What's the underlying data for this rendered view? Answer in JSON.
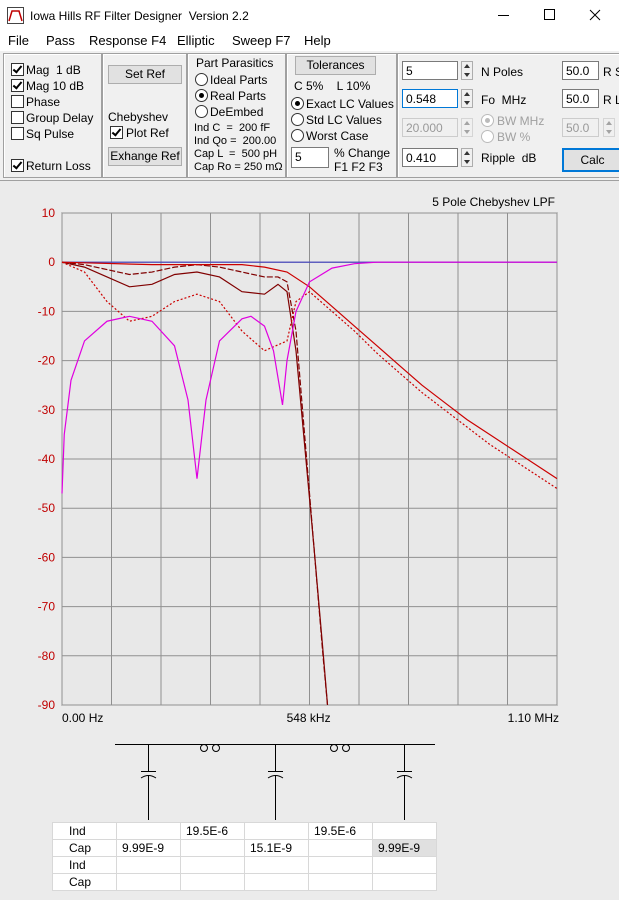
{
  "window": {
    "title": "Iowa Hills RF Filter Designer  Version 2.2"
  },
  "menu": [
    "File",
    "Pass",
    "Response F4",
    "Elliptic",
    "Sweep F7",
    "Help"
  ],
  "display_options": [
    {
      "label": "Mag  1 dB",
      "checked": true
    },
    {
      "label": "Mag 10 dB",
      "checked": true
    },
    {
      "label": "Phase",
      "checked": false
    },
    {
      "label": "Group Delay",
      "checked": false
    },
    {
      "label": "Sq Pulse",
      "checked": false
    },
    {
      "label": "Return Loss",
      "checked": true
    }
  ],
  "reference": {
    "set_ref": "Set Ref",
    "filter_name": "Chebyshev",
    "plot_ref": {
      "label": "Plot Ref",
      "checked": true
    },
    "exchange_ref": "Exhange Ref"
  },
  "parasitics": {
    "title": "Part Parasitics",
    "options": [
      {
        "label": "Ideal Parts",
        "selected": false
      },
      {
        "label": "Real Parts",
        "selected": true
      },
      {
        "label": "DeEmbed",
        "selected": false
      }
    ],
    "params": [
      "Ind C  =  200 fF",
      "Ind Qo =  200.00",
      "Cap L  =  500 pH",
      "Cap Ro = 250 mΩ"
    ]
  },
  "tolerances": {
    "button": "Tolerances",
    "summary": "C 5%    L 10%",
    "options": [
      {
        "label": "Exact LC Values",
        "selected": true
      },
      {
        "label": "Std LC Values",
        "selected": false
      },
      {
        "label": "Worst Case",
        "selected": false
      }
    ],
    "change_value": "5",
    "change_label": "% Change",
    "keys": "F1 F2 F3"
  },
  "parameters": {
    "n_poles": {
      "value": "5",
      "label": "N Poles"
    },
    "fo": {
      "value": "0.548",
      "label": "Fo  MHz"
    },
    "bw": {
      "value": "20.000",
      "options": [
        {
          "label": "BW MHz",
          "selected": true
        },
        {
          "label": "BW %",
          "selected": false
        }
      ]
    },
    "ripple": {
      "value": "0.410",
      "label": "Ripple  dB"
    },
    "r_source": {
      "value": "50.0",
      "label": "R S"
    },
    "r_load": {
      "value": "50.0",
      "label": "R L"
    },
    "r_third": {
      "value": "50.0"
    },
    "calc": "Calc"
  },
  "chart_data": {
    "type": "line",
    "title": "5 Pole Chebyshev LPF",
    "xlim": [
      0,
      1.1
    ],
    "ylim": [
      -90,
      10
    ],
    "xticks": [
      {
        "value": 0,
        "label": "0.00 Hz"
      },
      {
        "value": 0.548,
        "label": "548 kHz"
      },
      {
        "value": 1.1,
        "label": "1.10 MHz"
      }
    ],
    "x_gridlines": [
      0,
      0.11,
      0.22,
      0.33,
      0.44,
      0.55,
      0.66,
      0.77,
      0.88,
      0.99,
      1.1
    ],
    "yticks": [
      10,
      0,
      -10,
      -20,
      -30,
      -40,
      -50,
      -60,
      -70,
      -80,
      -90
    ],
    "grid": true,
    "series": [
      {
        "color": "#4040c0",
        "dash": "solid",
        "x": [
          0,
          1.1
        ],
        "values": [
          0,
          0
        ]
      },
      {
        "color": "#800000",
        "dash": "solid",
        "x": [
          0,
          0.05,
          0.1,
          0.15,
          0.2,
          0.25,
          0.3,
          0.35,
          0.4,
          0.45,
          0.48,
          0.5,
          0.52,
          0.54,
          0.56,
          0.58,
          0.59
        ],
        "values": [
          0,
          -1,
          -3,
          -5,
          -4.5,
          -2.5,
          -2,
          -3,
          -6,
          -6.5,
          -4.5,
          -6,
          -18,
          -38,
          -58,
          -79,
          -90
        ]
      },
      {
        "color": "#800000",
        "dash": "dashed",
        "x": [
          0,
          0.05,
          0.1,
          0.15,
          0.2,
          0.25,
          0.3,
          0.35,
          0.4,
          0.45,
          0.48,
          0.5,
          0.52,
          0.54,
          0.56,
          0.58,
          0.59
        ],
        "values": [
          0,
          -0.5,
          -1.5,
          -2.5,
          -2,
          -1,
          -0.5,
          -1,
          -2,
          -3,
          -3,
          -4,
          -14,
          -36,
          -58,
          -80,
          -90
        ]
      },
      {
        "color": "#cc0000",
        "dash": "solid",
        "x": [
          0,
          0.2,
          0.4,
          0.45,
          0.5,
          0.55,
          0.6,
          0.65,
          0.7,
          0.75,
          0.8,
          0.85,
          0.9,
          0.95,
          1.0,
          1.05,
          1.1
        ],
        "values": [
          0,
          -0.5,
          -0.5,
          -1,
          -2,
          -5,
          -9,
          -13,
          -17,
          -21,
          -25,
          -28.5,
          -32,
          -35,
          -38,
          -41,
          -44
        ]
      },
      {
        "color": "#cc0000",
        "dash": "dotted",
        "x": [
          0,
          0.05,
          0.1,
          0.15,
          0.2,
          0.25,
          0.3,
          0.35,
          0.4,
          0.45,
          0.5,
          0.52,
          0.55,
          0.6,
          0.65,
          0.7,
          0.75,
          0.8,
          0.85,
          0.9,
          0.95,
          1.0,
          1.05,
          1.1
        ],
        "values": [
          0,
          -2,
          -8,
          -12,
          -11,
          -8,
          -6.5,
          -8,
          -14,
          -18,
          -16,
          -8,
          -6,
          -10,
          -14,
          -18.5,
          -22.5,
          -26.5,
          -30,
          -33.5,
          -37,
          -40,
          -43,
          -46
        ]
      },
      {
        "color": "#e000e0",
        "dash": "solid",
        "x": [
          0,
          0.005,
          0.02,
          0.05,
          0.1,
          0.15,
          0.2,
          0.25,
          0.28,
          0.3,
          0.32,
          0.35,
          0.4,
          0.42,
          0.45,
          0.47,
          0.49,
          0.5,
          0.52,
          0.55,
          0.6,
          0.65,
          0.7,
          1.1
        ],
        "values": [
          -47,
          -35,
          -24,
          -16,
          -12,
          -11,
          -12,
          -17,
          -28,
          -44,
          -28,
          -16,
          -11.5,
          -11,
          -13,
          -18,
          -29,
          -20,
          -10,
          -4,
          -1.2,
          -0.3,
          0,
          0
        ]
      }
    ]
  },
  "table": {
    "rows": [
      [
        "Ind",
        null,
        "19.5E-6",
        null,
        "19.5E-6",
        null
      ],
      [
        "Cap",
        "9.99E-9",
        null,
        "15.1E-9",
        null,
        "9.99E-9"
      ],
      [
        "Ind",
        null,
        null,
        null,
        null,
        null
      ],
      [
        "Cap",
        null,
        null,
        null,
        null,
        null
      ]
    ]
  }
}
